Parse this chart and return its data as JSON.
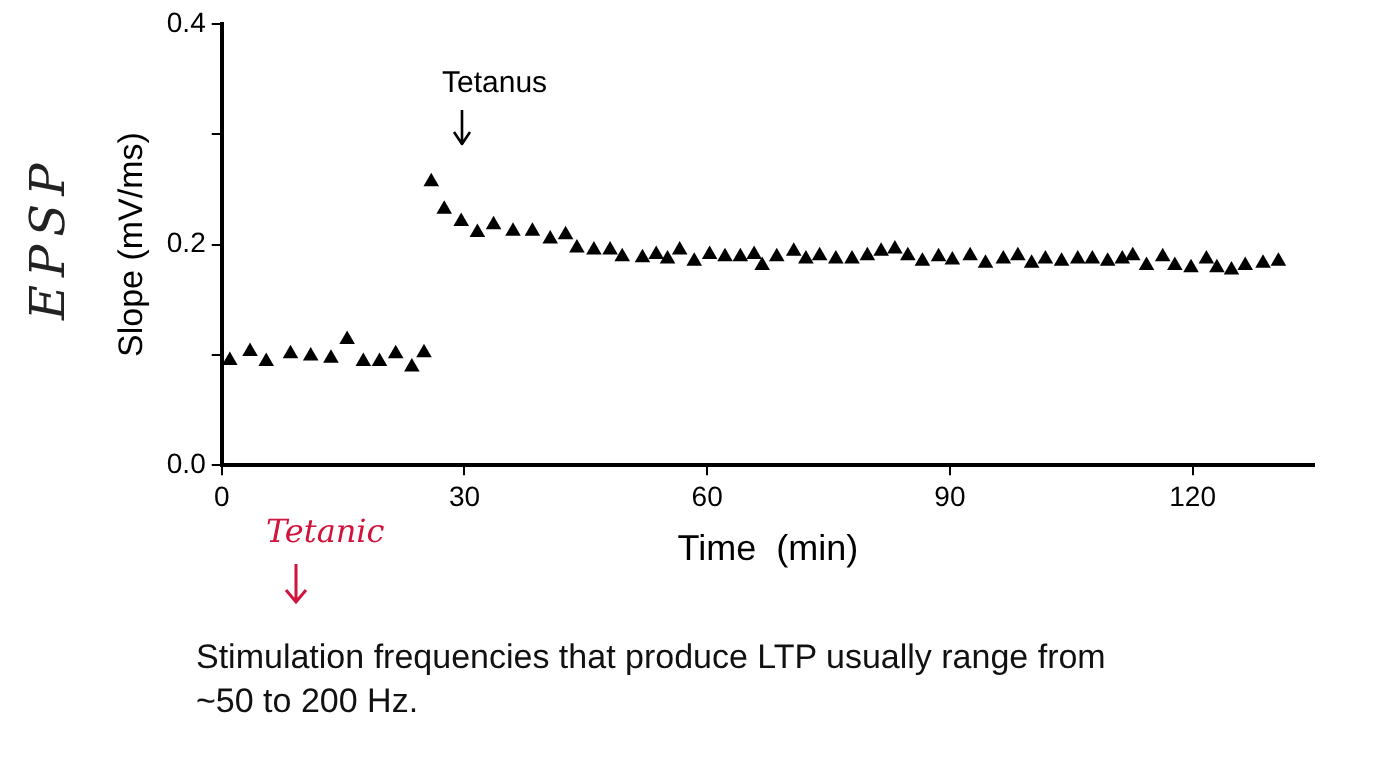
{
  "chart_data": {
    "type": "scatter",
    "xlabel": "Time  (min)",
    "ylabel": "Slope (mV/ms)",
    "xlim": [
      0,
      135
    ],
    "xticks": [
      0,
      30,
      60,
      90,
      120
    ],
    "ylim": [
      0,
      0.4
    ],
    "yticks": [
      {
        "value": 0,
        "label": "0.0"
      },
      {
        "value": 0.1,
        "label": null
      },
      {
        "value": 0.2,
        "label": "0.2"
      },
      {
        "value": 0.3,
        "label": null
      },
      {
        "value": 0.4,
        "label": "0.4"
      }
    ],
    "grid": false,
    "legend": false,
    "marker": "triangle",
    "annotations": [
      "Tetanus",
      "EPSP",
      "Tetanic",
      "Stimulation frequencies that produce LTP usually range from ~50 to 200 Hz."
    ],
    "series": [
      {
        "color": "#000000",
        "x": [
          1,
          3.5,
          5.5,
          8.5,
          11,
          13.5,
          15.5,
          17.5,
          19.5,
          21.5,
          23.5,
          25,
          25.9,
          27.5,
          29.6,
          31.6,
          33.6,
          36,
          38.4,
          40.6,
          42.5,
          43.9,
          46,
          48,
          49.5,
          52,
          53.7,
          55.1,
          56.6,
          58.4,
          60.3,
          62.2,
          64.1,
          65.8,
          66.8,
          68.6,
          70.7,
          72.2,
          73.9,
          75.9,
          77.9,
          79.8,
          81.5,
          83.2,
          84.8,
          86.6,
          88.6,
          90.3,
          92.5,
          94.4,
          96.6,
          98.4,
          100.1,
          101.8,
          103.8,
          105.8,
          107.6,
          109.5,
          111.3,
          112.6,
          114.3,
          116.3,
          117.8,
          119.8,
          121.7,
          123,
          124.8,
          126.5,
          128.7,
          130.6
        ],
        "values": [
          0.095,
          0.103,
          0.094,
          0.101,
          0.099,
          0.097,
          0.114,
          0.094,
          0.094,
          0.101,
          0.089,
          0.102,
          0.257,
          0.232,
          0.221,
          0.211,
          0.218,
          0.212,
          0.212,
          0.205,
          0.209,
          0.197,
          0.195,
          0.195,
          0.189,
          0.188,
          0.191,
          0.187,
          0.195,
          0.185,
          0.191,
          0.189,
          0.189,
          0.191,
          0.181,
          0.189,
          0.194,
          0.187,
          0.19,
          0.187,
          0.187,
          0.19,
          0.194,
          0.196,
          0.19,
          0.185,
          0.189,
          0.186,
          0.19,
          0.183,
          0.187,
          0.19,
          0.183,
          0.187,
          0.185,
          0.187,
          0.187,
          0.185,
          0.187,
          0.19,
          0.181,
          0.189,
          0.181,
          0.179,
          0.187,
          0.179,
          0.177,
          0.181,
          0.183,
          0.185
        ]
      }
    ]
  }
}
